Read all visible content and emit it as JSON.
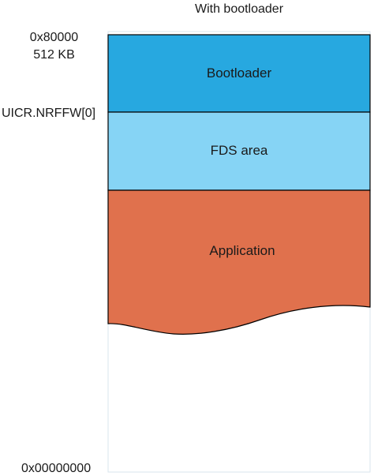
{
  "title": "With bootloader",
  "addresses": {
    "top": "0x80000",
    "top_size": "512 KB",
    "uicr": "UICR.NRFFW[0]",
    "bottom": "0x00000000"
  },
  "regions": [
    {
      "label": "Bootloader",
      "color": "#27a8e0"
    },
    {
      "label": "FDS area",
      "color": "#86d4f5"
    },
    {
      "label": "Application",
      "color": "#e0714d"
    }
  ],
  "colors": {
    "outline": "#000000",
    "memory_border": "#d9e4ee"
  }
}
